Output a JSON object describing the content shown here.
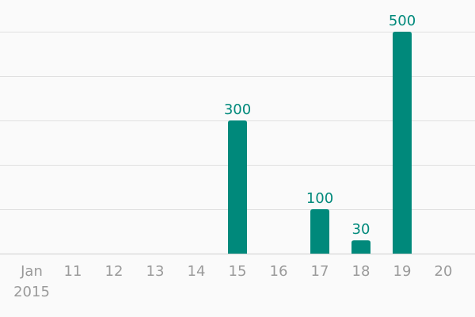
{
  "chart_data": {
    "type": "bar",
    "categories": [
      "Jan",
      "11",
      "12",
      "13",
      "14",
      "15",
      "16",
      "17",
      "18",
      "19",
      "20"
    ],
    "category_dates": [
      "2015-01-10",
      "2015-01-11",
      "2015-01-12",
      "2015-01-13",
      "2015-01-14",
      "2015-01-15",
      "2015-01-16",
      "2015-01-17",
      "2015-01-18",
      "2015-01-19",
      "2015-01-20"
    ],
    "first_tick_sublabel": "2015",
    "values": [
      0,
      0,
      0,
      0,
      0,
      300,
      0,
      100,
      30,
      500,
      0
    ],
    "data_labels": [
      "",
      "",
      "",
      "",
      "",
      "300",
      "",
      "100",
      "30",
      "500",
      ""
    ],
    "title": "",
    "xlabel": "",
    "ylabel": "",
    "ylim": [
      0,
      500
    ],
    "y_gridlines": [
      0,
      100,
      200,
      300,
      400,
      500
    ],
    "grid": true,
    "legend": "none",
    "colors": {
      "bar": "#00897b",
      "data_label": "#00897b",
      "tick_label": "#9a9a9a",
      "grid": "#e0e0e0",
      "background": "#fafafa"
    }
  }
}
